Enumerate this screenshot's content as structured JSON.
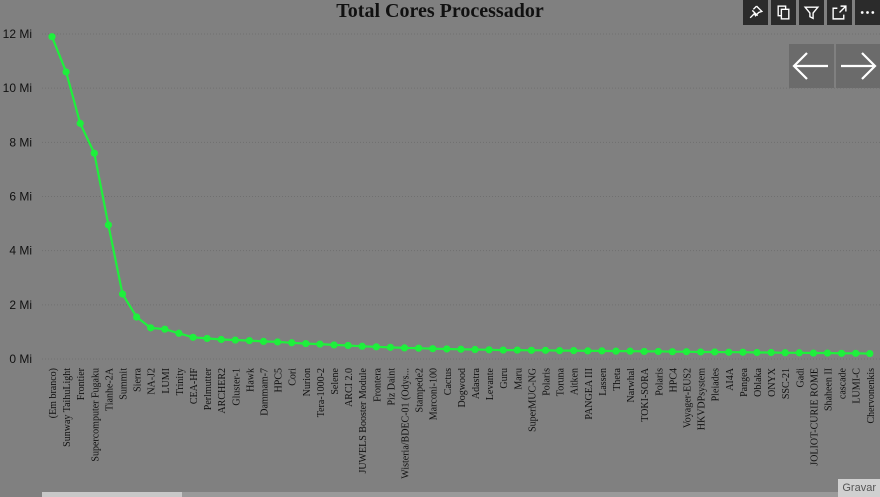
{
  "title": "Total Cores Processador",
  "toolbar": {
    "icons": [
      "pin-icon",
      "copy-icon",
      "filter-icon",
      "expand-icon",
      "more-icon"
    ]
  },
  "nav": {
    "prev_icon": "arrow-left-icon",
    "next_icon": "arrow-right-icon"
  },
  "status": {
    "text": "Gravar"
  },
  "chart_data": {
    "type": "line",
    "title": "Total Cores Processador",
    "color": "#1ef03c",
    "grid": true,
    "ylim": [
      0,
      12
    ],
    "yticks": [
      {
        "v": 0,
        "label": "0 Mi"
      },
      {
        "v": 2,
        "label": "2 Mi"
      },
      {
        "v": 4,
        "label": "4 Mi"
      },
      {
        "v": 6,
        "label": "6 Mi"
      },
      {
        "v": 8,
        "label": "8 Mi"
      },
      {
        "v": 10,
        "label": "10 Mi"
      },
      {
        "v": 12,
        "label": "12 Mi"
      }
    ],
    "categories": [
      "(Em branco)",
      "Sunway TaihuLight",
      "Frontier",
      "Supercomputer Fugaku",
      "Tianhe-2A",
      "Summit",
      "Sierra",
      "NA-J2",
      "LUMI",
      "Trinity",
      "CEA-HF",
      "Perlmutter",
      "ARCHER2",
      "Gluster-1",
      "Hawk",
      "Dammam-7",
      "HPC5",
      "Cori",
      "Nurion",
      "Tera-1000-2",
      "Selene",
      "ARCI 2.0",
      "JUWELS Booster Module",
      "Frontera",
      "Piz Daint",
      "Wisteria/BDEC-01 (Odys...",
      "Stampede2",
      "Marconi-100",
      "Cactus",
      "Dogwood",
      "Adastra",
      "Levante",
      "Guru",
      "Maru",
      "SuperMUC-NG",
      "Polaris",
      "Toruna",
      "Aitken",
      "PANGEA III",
      "Lassen",
      "Theta",
      "Narwhal",
      "TOKI-SORA",
      "Polaris",
      "HPC4",
      "Voyager-EUS2",
      "HKVDPsystem",
      "Pleiades",
      "AI4A",
      "Pangea",
      "Oblaka",
      "ONYX",
      "SSC-21",
      "Gadi",
      "JOLIOT-CURIE ROME",
      "Shaheen II",
      "cascade",
      "LUMI-C",
      "Chervonenkis"
    ],
    "values": [
      11.9,
      10.6,
      8.7,
      7.6,
      4.95,
      2.4,
      1.55,
      1.15,
      1.1,
      0.95,
      0.8,
      0.76,
      0.72,
      0.7,
      0.68,
      0.65,
      0.63,
      0.6,
      0.57,
      0.55,
      0.52,
      0.5,
      0.47,
      0.45,
      0.43,
      0.41,
      0.4,
      0.38,
      0.37,
      0.36,
      0.35,
      0.34,
      0.33,
      0.33,
      0.32,
      0.32,
      0.31,
      0.31,
      0.3,
      0.3,
      0.29,
      0.29,
      0.28,
      0.28,
      0.27,
      0.27,
      0.26,
      0.26,
      0.25,
      0.25,
      0.24,
      0.24,
      0.23,
      0.23,
      0.22,
      0.22,
      0.21,
      0.21,
      0.2
    ]
  }
}
